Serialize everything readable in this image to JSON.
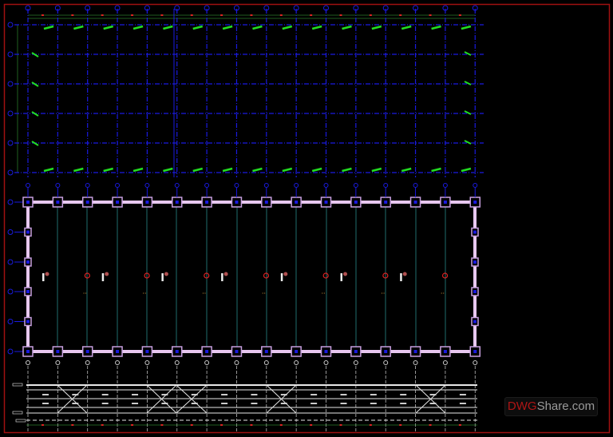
{
  "watermark": {
    "brand_red": "DWG",
    "brand_rest": "Share.com"
  },
  "colors": {
    "background": "#000000",
    "frame": "#a01010",
    "grid": "#1a1adf",
    "bracing": "#22dd22",
    "wall": "#e8c8f0",
    "column_box": "#c8a0e0",
    "truss": "#e8e8e8",
    "marker": "#dd2222",
    "axis_line": "#2a8a8a"
  }
}
